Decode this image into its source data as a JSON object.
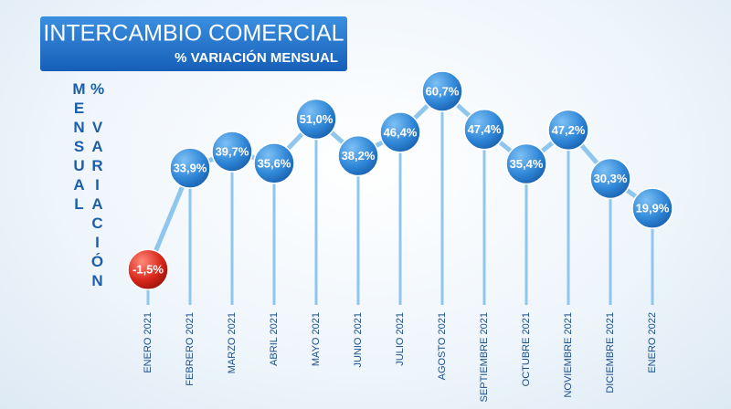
{
  "chart_data": {
    "type": "line",
    "title": "INTERCAMBIO COMERCIAL",
    "subtitle": "% VARIACIÓN MENSUAL",
    "y_label": "% VARIACIÓN MENSUAL",
    "categories": [
      "ENERO 2021",
      "FEBRERO 2021",
      "MARZO 2021",
      "ABRIL 2021",
      "MAYO 2021",
      "JUNIO 2021",
      "JULIO 2021",
      "AGOSTO 2021",
      "SEPTIEMBRE 2021",
      "OCTUBRE 2021",
      "NOVIEMBRE 2021",
      "DICIEMBRE 2021",
      "ENERO 2022"
    ],
    "values": [
      -1.5,
      33.9,
      39.7,
      35.6,
      51.0,
      38.2,
      46.4,
      60.7,
      47.4,
      35.4,
      47.2,
      30.3,
      19.9
    ],
    "value_labels": [
      "-1,5%",
      "33,9%",
      "39,7%",
      "35,6%",
      "51,0%",
      "38,2%",
      "46,4%",
      "60,7%",
      "47,4%",
      "35,4%",
      "47,2%",
      "30,3%",
      "19,9%"
    ],
    "color": "#2f86d6",
    "negative_color": "#d8261b",
    "line_color": "#8fc6ee"
  }
}
